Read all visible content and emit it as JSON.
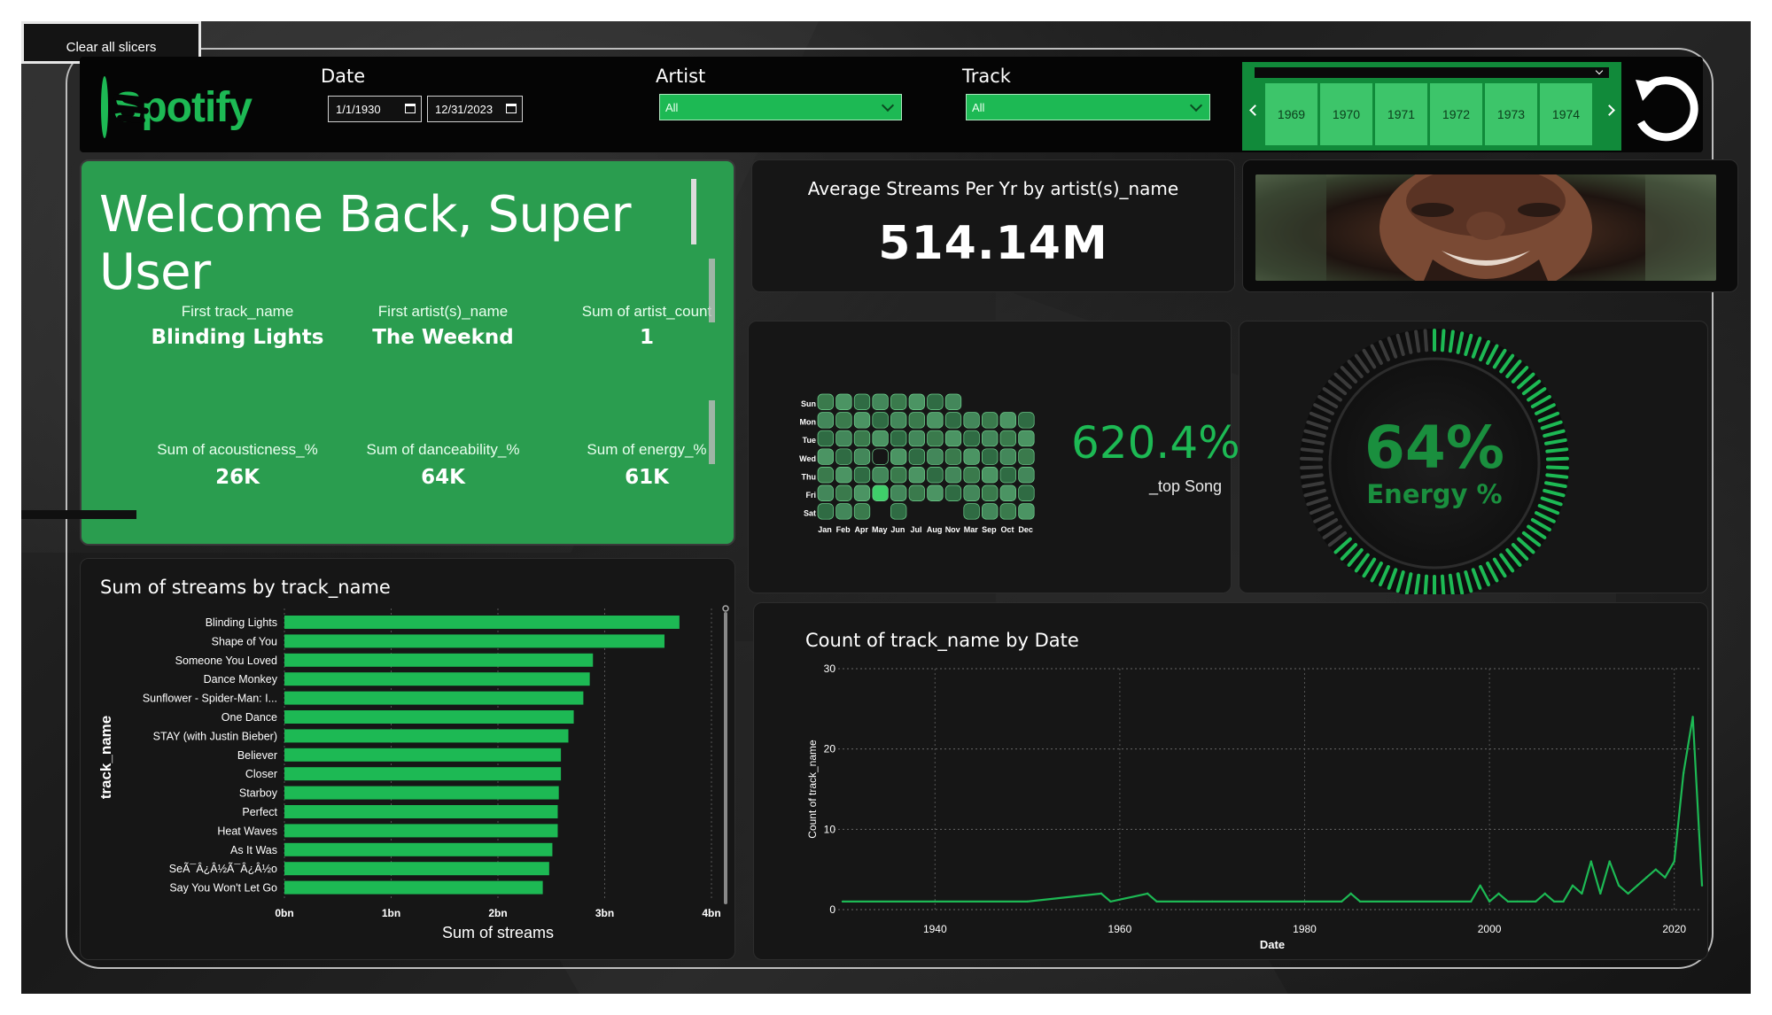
{
  "toolbar": {
    "clear_slicers_label": "Clear all slicers"
  },
  "logo": {
    "text": "Spotify",
    "color": "#1db954"
  },
  "slicers": {
    "date": {
      "title": "Date",
      "start": "1/1/1930",
      "end": "12/31/2023"
    },
    "artist": {
      "title": "Artist",
      "selected": "All"
    },
    "track": {
      "title": "Track",
      "selected": "All"
    },
    "years": [
      "1969",
      "1970",
      "1971",
      "1972",
      "1973",
      "1974"
    ]
  },
  "welcome": {
    "title": "Welcome Back, Super User",
    "kpis": [
      {
        "label": "First track_name",
        "value": "Blinding Lights"
      },
      {
        "label": "First artist(s)_name",
        "value": "The Weeknd"
      },
      {
        "label": "Sum of artist_count",
        "value": "1"
      },
      {
        "label": "Sum of acousticness_%",
        "value": "26K"
      },
      {
        "label": "Sum of danceability_%",
        "value": "64K"
      },
      {
        "label": "Sum of energy_%",
        "value": "61K"
      }
    ]
  },
  "avg_streams": {
    "title": "Average Streams Per Yr by artist(s)_name",
    "value": "514.14M"
  },
  "top_song": {
    "value": "620.4%",
    "label": "_top Song",
    "trend": "up",
    "accent": "#1db954"
  },
  "energy_gauge": {
    "value": "64%",
    "label": "Energy %",
    "fraction": 0.64,
    "accent": "#1db954"
  },
  "heatmap": {
    "days": [
      "Sun",
      "Mon",
      "Tue",
      "Wed",
      "Thu",
      "Fri",
      "Sat"
    ],
    "months": [
      "Jan",
      "Feb",
      "Apr",
      "May",
      "Jun",
      "Jul",
      "Aug",
      "Nov",
      "Mar",
      "Sep",
      "Oct",
      "Dec"
    ]
  },
  "chart_data": [
    {
      "type": "bar",
      "orientation": "horizontal",
      "title": "Sum of streams by track_name",
      "xlabel": "Sum of streams",
      "ylabel": "track_name",
      "xlim": [
        0,
        4000000000
      ],
      "x_ticks": [
        "0bn",
        "1bn",
        "2bn",
        "3bn",
        "4bn"
      ],
      "categories": [
        "Blinding Lights",
        "Shape of You",
        "Someone You Loved",
        "Dance Monkey",
        "Sunflower - Spider-Man: I...",
        "One Dance",
        "STAY (with Justin Bieber)",
        "Believer",
        "Closer",
        "Starboy",
        "Perfect",
        "Heat Waves",
        "As It Was",
        "SeÃ¯Â¿Â½Ã¯Â¿Â½o",
        "Say You Won't Let Go"
      ],
      "values": [
        3700000000,
        3560000000,
        2890000000,
        2860000000,
        2800000000,
        2710000000,
        2660000000,
        2590000000,
        2590000000,
        2570000000,
        2560000000,
        2560000000,
        2510000000,
        2480000000,
        2420000000
      ],
      "color": "#1db954"
    },
    {
      "type": "line",
      "title": "Count of track_name by Date",
      "xlabel": "Date",
      "ylabel": "Count of track_name",
      "ylim": [
        0,
        30
      ],
      "y_ticks": [
        "0",
        "10",
        "20",
        "30"
      ],
      "xlim": [
        1930,
        2023
      ],
      "x_ticks": [
        "1940",
        "1960",
        "1980",
        "2000",
        "2020"
      ],
      "x": [
        1930,
        1950,
        1958,
        1959,
        1963,
        1964,
        1968,
        1970,
        1984,
        1985,
        1986,
        1998,
        1999,
        2000,
        2001,
        2002,
        2003,
        2004,
        2005,
        2006,
        2007,
        2008,
        2009,
        2010,
        2011,
        2012,
        2013,
        2014,
        2015,
        2016,
        2017,
        2018,
        2019,
        2020,
        2021,
        2022,
        2023
      ],
      "y": [
        1,
        1,
        2,
        1,
        2,
        1,
        1,
        1,
        1,
        2,
        1,
        1,
        3,
        1,
        2,
        1,
        1,
        1,
        1,
        2,
        1,
        1,
        3,
        2,
        6,
        2,
        6,
        3,
        2,
        3,
        4,
        5,
        4,
        6,
        17,
        24,
        3
      ],
      "color": "#1db954",
      "grid": "dotted"
    }
  ]
}
